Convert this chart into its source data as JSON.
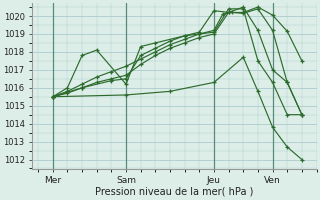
{
  "background_color": "#ddeee8",
  "plot_bg_color": "#ddeee8",
  "grid_color": "#aacccc",
  "line_color": "#2d6b2d",
  "xlabel": "Pression niveau de la mer( hPa )",
  "ylim": [
    1011.5,
    1020.7
  ],
  "yticks": [
    1012,
    1013,
    1014,
    1015,
    1016,
    1017,
    1018,
    1019,
    1020
  ],
  "xlim": [
    -0.2,
    9.5
  ],
  "xtick_labels": [
    "Mer",
    "Sam",
    "Jeu",
    "Ven"
  ],
  "xtick_positions": [
    0.5,
    3.0,
    6.0,
    8.0
  ],
  "vline_positions": [
    0.5,
    3.0,
    6.0,
    8.0
  ],
  "lines": [
    {
      "x": [
        0.5,
        1.0,
        1.5,
        2.0,
        2.5,
        3.0,
        3.5,
        4.0,
        4.5,
        5.0,
        5.5,
        6.0,
        6.3,
        6.6,
        7.0,
        7.5,
        8.0,
        8.5,
        9.0
      ],
      "y": [
        1015.5,
        1015.8,
        1016.2,
        1016.6,
        1016.9,
        1017.2,
        1017.6,
        1018.0,
        1018.4,
        1018.7,
        1019.0,
        1019.2,
        1020.1,
        1020.2,
        1020.15,
        1020.4,
        1019.2,
        1016.3,
        1014.5
      ]
    },
    {
      "x": [
        0.5,
        1.0,
        1.5,
        2.0,
        2.5,
        3.0,
        3.5,
        4.0,
        4.5,
        5.0,
        5.5,
        6.0,
        6.5,
        7.0,
        7.5,
        8.0,
        8.5,
        9.0
      ],
      "y": [
        1015.5,
        1015.7,
        1016.0,
        1016.3,
        1016.5,
        1016.7,
        1017.3,
        1017.8,
        1018.2,
        1018.5,
        1018.8,
        1019.0,
        1020.2,
        1020.2,
        1020.5,
        1020.05,
        1019.15,
        1017.5
      ]
    },
    {
      "x": [
        0.5,
        1.5,
        2.5,
        3.0,
        3.5,
        4.0,
        4.5,
        5.0,
        5.5,
        6.0,
        6.5,
        7.0,
        7.5,
        8.0,
        8.5,
        9.0
      ],
      "y": [
        1015.5,
        1016.0,
        1016.4,
        1016.5,
        1017.8,
        1018.2,
        1018.6,
        1018.9,
        1019.1,
        1020.3,
        1020.2,
        1020.5,
        1019.2,
        1017.0,
        1016.3,
        1014.5
      ]
    },
    {
      "x": [
        0.5,
        1.0,
        1.5,
        2.0,
        3.0,
        3.5,
        4.0,
        5.0,
        5.5,
        6.0,
        6.5,
        7.0,
        7.5,
        8.0,
        8.5,
        9.0
      ],
      "y": [
        1015.5,
        1016.0,
        1017.8,
        1018.1,
        1016.2,
        1018.3,
        1018.5,
        1018.9,
        1019.0,
        1019.1,
        1020.4,
        1020.4,
        1017.5,
        1016.3,
        1014.5,
        1014.5
      ]
    },
    {
      "x": [
        0.5,
        3.0,
        4.5,
        6.0,
        7.0,
        7.5,
        8.0,
        8.5,
        9.0
      ],
      "y": [
        1015.5,
        1015.6,
        1015.8,
        1016.3,
        1017.7,
        1015.8,
        1013.8,
        1012.7,
        1012.0
      ]
    }
  ]
}
